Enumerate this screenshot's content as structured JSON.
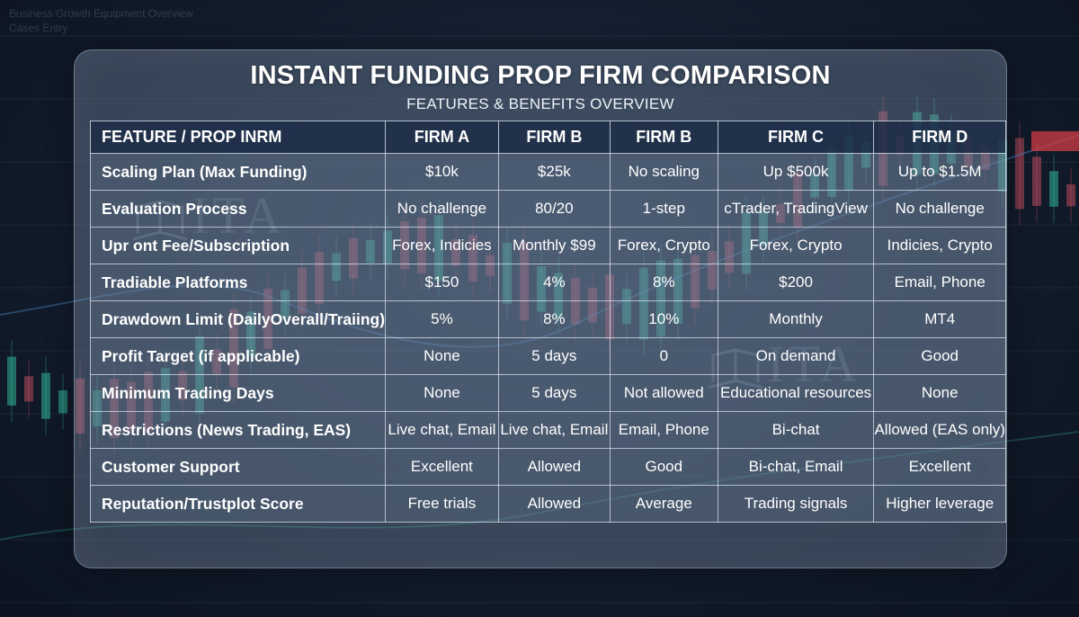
{
  "background": {
    "top_left_lines": [
      "Business Growth Equipment Overview",
      "Cases Entry"
    ]
  },
  "title": "INSTANT FUNDING PROP FIRM COMPARISON",
  "subtitle": "FEATURES & BENEFITS OVERVIEW",
  "watermark": "ITA",
  "table": {
    "headers": [
      "FEATURE / PROP INRM",
      "FIRM A",
      "FIRM B",
      "FIRM B",
      "FIRM C",
      "FIRM D"
    ],
    "rows": [
      [
        "Scaling Plan (Max Funding)",
        "$10k",
        "$25k",
        "No scaling",
        "Up $500k",
        "Up to $1.5M"
      ],
      [
        "Evaluation Process",
        "No challenge",
        "80/20",
        "1-step",
        "cTrader, TradingView",
        "No challenge"
      ],
      [
        "Upr ont Fee/Subscription",
        "Forex, Indicies",
        "Monthly $99",
        "Forex, Crypto",
        "Forex, Crypto",
        "Indicies, Crypto"
      ],
      [
        "Tradiable Platforms",
        "$150",
        "4%",
        "8%",
        "$200",
        "Email, Phone"
      ],
      [
        "Drawdown Limit (DailyOverall/Traiing)",
        "5%",
        "8%",
        "10%",
        "Monthly",
        "MT4"
      ],
      [
        "Profit Target (if applicable)",
        "None",
        "5 days",
        "0",
        "On demand",
        "Good"
      ],
      [
        "Minimum Trading Days",
        "None",
        "5 days",
        "Not allowed",
        "Educational resources",
        "None"
      ],
      [
        "Restrictions (News Trading, EAS)",
        "Live chat, Email",
        "Live chat, Email",
        "Email, Phone",
        "Bi-chat",
        "Allowed (EAS only)"
      ],
      [
        "Customer Support",
        "Excellent",
        "Allowed",
        "Good",
        "Bi-chat, Email",
        "Excellent"
      ],
      [
        "Reputation/Trustplot Score",
        "Free trials",
        "Allowed",
        "Average",
        "Trading signals",
        "Higher leverage"
      ]
    ]
  },
  "colors": {
    "candle_up": "#3ad6b0",
    "candle_down": "#e0566b",
    "header_bg": "#1c2d46"
  }
}
